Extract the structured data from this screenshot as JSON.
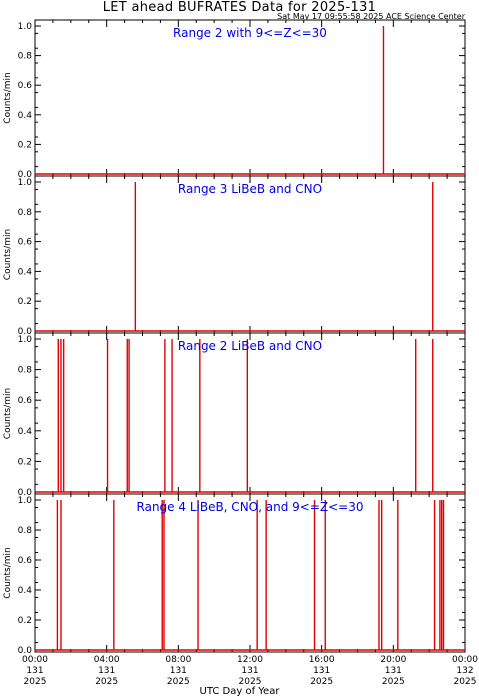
{
  "title": "LET ahead BUFRATES Data for 2025-131",
  "timestamp": "Sat May 17 09:55:58 2025 ACE Science Center",
  "x_axis_label": "UTC Day of Year",
  "x_ticks": [
    {
      "hour": 0,
      "time": "00:00",
      "doy": "131",
      "year": "2025"
    },
    {
      "hour": 4,
      "time": "04:00",
      "doy": "131",
      "year": "2025"
    },
    {
      "hour": 8,
      "time": "08:00",
      "doy": "131",
      "year": "2025"
    },
    {
      "hour": 12,
      "time": "12:00",
      "doy": "131",
      "year": "2025"
    },
    {
      "hour": 16,
      "time": "16:00",
      "doy": "131",
      "year": "2025"
    },
    {
      "hour": 20,
      "time": "20:00",
      "doy": "131",
      "year": "2025"
    },
    {
      "hour": 24,
      "time": "00:00",
      "doy": "132",
      "year": "2025"
    }
  ],
  "colors": {
    "line": "#e00000",
    "panel_title": "#0000e6",
    "axis": "#000000"
  },
  "chart_data": [
    {
      "type": "line",
      "title": "Range 2 with 9<=Z<=30",
      "ylabel": "Counts/min",
      "ylim": [
        0,
        1.0
      ],
      "yticks": [
        "0.0",
        "0.2",
        "0.4",
        "0.6",
        "0.8",
        "1.0"
      ],
      "xlim_hours": [
        0,
        24
      ],
      "spikes_hours": [
        19.45
      ],
      "spike_value": 1.0
    },
    {
      "type": "line",
      "title": "Range 3 LiBeB and CNO",
      "ylabel": "Counts/min",
      "ylim": [
        0,
        1.0
      ],
      "yticks": [
        "0.0",
        "0.2",
        "0.4",
        "0.6",
        "0.8",
        "1.0"
      ],
      "xlim_hours": [
        0,
        24
      ],
      "spikes_hours": [
        5.6,
        22.2
      ],
      "spike_value": 1.0
    },
    {
      "type": "line",
      "title": "Range 2 LiBeB and CNO",
      "ylabel": "Counts/min",
      "ylim": [
        0,
        1.0
      ],
      "yticks": [
        "0.0",
        "0.2",
        "0.4",
        "0.6",
        "0.8",
        "1.0"
      ],
      "xlim_hours": [
        0,
        24
      ],
      "spikes_hours": [
        1.3,
        1.45,
        1.6,
        4.05,
        5.15,
        5.25,
        7.25,
        7.65,
        9.2,
        11.85,
        21.25,
        22.2
      ],
      "spike_value": 1.0
    },
    {
      "type": "line",
      "title": "Range 4 LiBeB, CNO, and 9<=Z<=30",
      "ylabel": "Counts/min",
      "ylim": [
        0,
        1.0
      ],
      "yticks": [
        "0.0",
        "0.2",
        "0.4",
        "0.6",
        "0.8",
        "1.0"
      ],
      "xlim_hours": [
        0,
        24
      ],
      "spikes_hours": [
        1.25,
        1.45,
        4.4,
        7.1,
        7.2,
        9.1,
        12.4,
        12.9,
        15.6,
        16.2,
        19.2,
        19.35,
        20.25,
        22.3,
        22.6,
        22.7,
        22.8
      ],
      "spike_value": 1.0
    }
  ]
}
